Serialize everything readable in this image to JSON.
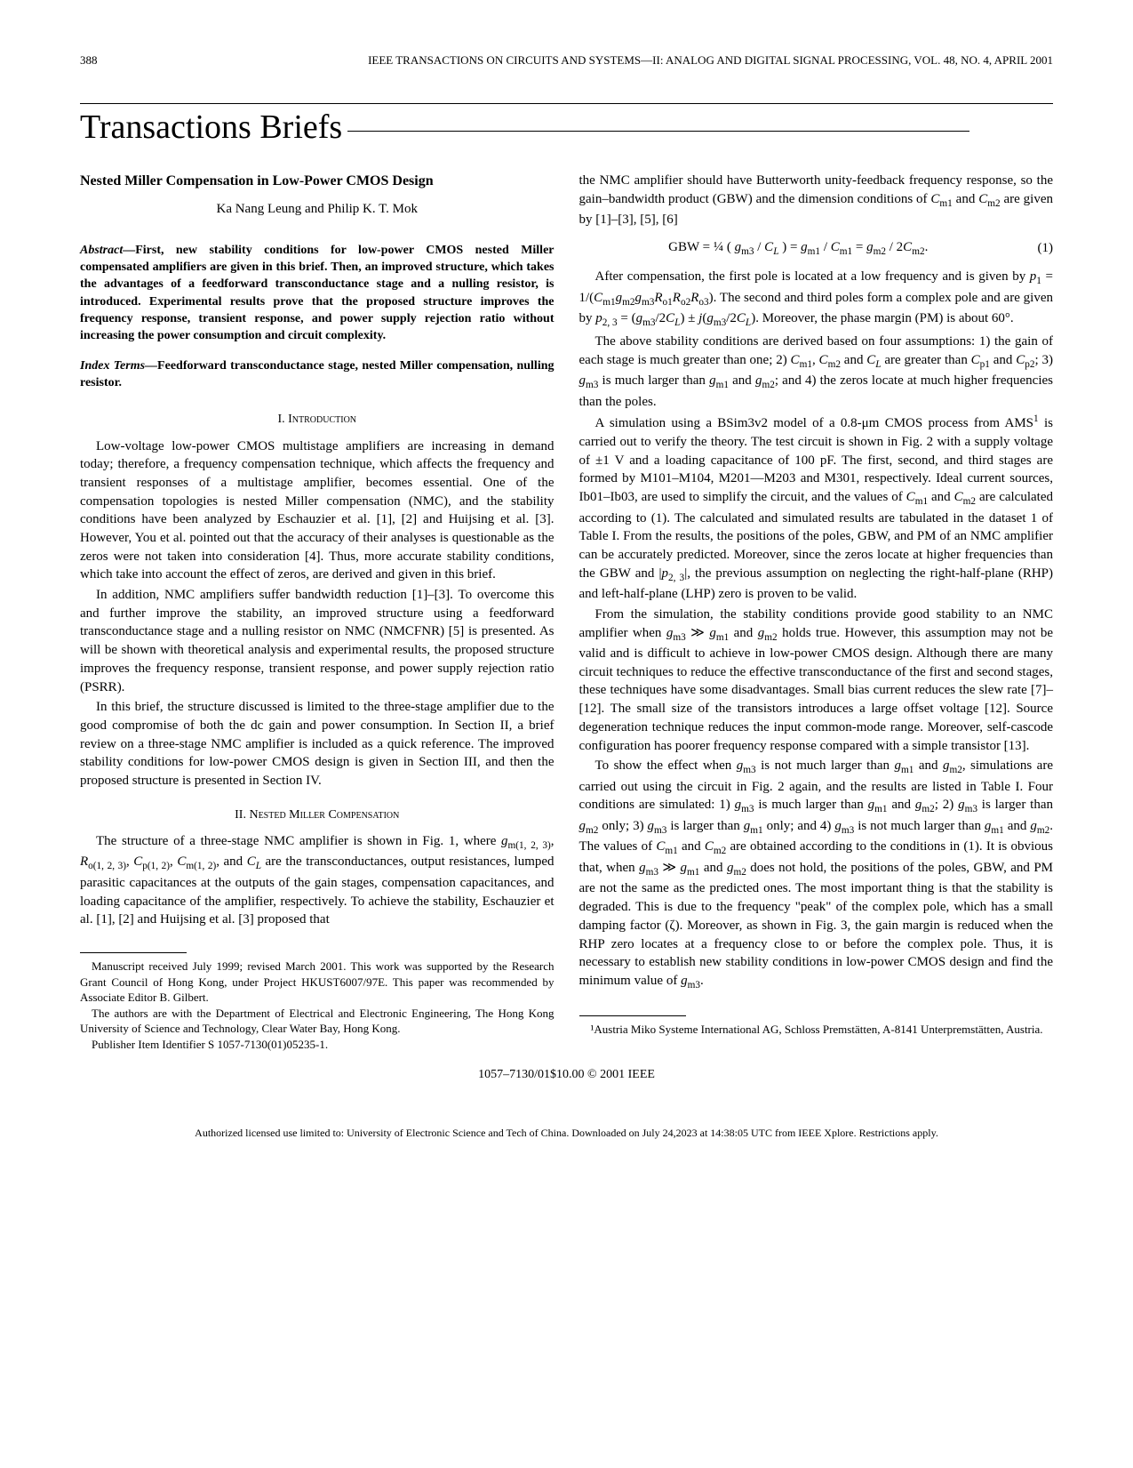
{
  "header": {
    "page_number": "388",
    "running_title": "IEEE TRANSACTIONS ON CIRCUITS AND SYSTEMS—II: ANALOG AND DIGITAL SIGNAL PROCESSING, VOL. 48, NO. 4, APRIL 2001"
  },
  "section_heading": "Transactions Briefs",
  "title": "Nested Miller Compensation in Low-Power CMOS Design",
  "authors": "Ka Nang Leung and Philip K. T. Mok",
  "abstract_lead": "Abstract—",
  "abstract": "First, new stability conditions for low-power CMOS nested Miller compensated amplifiers are given in this brief. Then, an improved structure, which takes the advantages of a feedforward transconductance stage and a nulling resistor, is introduced. Experimental results prove that the proposed structure improves the frequency response, transient response, and power supply rejection ratio without increasing the power consumption and circuit complexity.",
  "index_lead": "Index Terms—",
  "index_terms": "Feedforward transconductance stage, nested Miller compensation, nulling resistor.",
  "sec1_head": "I.  Introduction",
  "sec1_p1": "Low-voltage low-power CMOS multistage amplifiers are increasing in demand today; therefore, a frequency compensation technique, which affects the frequency and transient responses of a multistage amplifier, becomes essential. One of the compensation topologies is nested Miller compensation (NMC), and the stability conditions have been analyzed by Eschauzier et al. [1], [2] and Huijsing et al. [3]. However, You et al. pointed out that the accuracy of their analyses is questionable as the zeros were not taken into consideration [4]. Thus, more accurate stability conditions, which take into account the effect of zeros, are derived and given in this brief.",
  "sec1_p2": "In addition, NMC amplifiers suffer bandwidth reduction [1]–[3]. To overcome this and further improve the stability, an improved structure using a feedforward transconductance stage and a nulling resistor on NMC (NMCFNR) [5] is presented. As will be shown with theoretical analysis and experimental results, the proposed structure improves the frequency response, transient response, and power supply rejection ratio (PSRR).",
  "sec1_p3": "In this brief, the structure discussed is limited to the three-stage amplifier due to the good compromise of both the dc gain and power consumption. In Section II, a brief review on a three-stage NMC amplifier is included as a quick reference. The improved stability conditions for low-power CMOS design is given in Section III, and then the proposed structure is presented in Section IV.",
  "sec2_head": "II.  Nested Miller Compensation",
  "sec2_p1a": "The structure of a three-stage NMC amplifier is shown in Fig. 1, where ",
  "sec2_p1b": " are the transconductances, output resistances, lumped parasitic capacitances at the outputs of the gain stages, compensation capacitances, and loading capacitance of the amplifier, respectively. To achieve the stability, Eschauzier et al. [1], [2] and Huijsing et al. [3] proposed that",
  "col2_p1a": "the NMC amplifier should have Butterworth unity-feedback frequency response, so the gain–bandwidth product (GBW) and the dimension conditions of ",
  "col2_p1b": " are given by [1]–[3], [5], [6]",
  "eq1_num": "(1)",
  "col2_p2a": "After compensation, the first pole is located at a low frequency and is given by ",
  "col2_p2b": ". The second and third poles form a complex pole and are given by ",
  "col2_p2c": ". Moreover, the phase margin (PM) is about 60°.",
  "col2_p3a": "The above stability conditions are derived based on four assumptions: 1) the gain of each stage is much greater than one; 2) ",
  "col2_p3b": " are greater than ",
  "col2_p3c": "; 3) ",
  "col2_p3d": " is much larger than ",
  "col2_p3e": "; and 4) the zeros locate at much higher frequencies than the poles.",
  "col2_p4a": "A simulation using a BSim3v2 model of a 0.8-μm CMOS process from AMS",
  "col2_p4b": " is carried out to verify the theory. The test circuit is shown in Fig. 2 with a supply voltage of ±1 V and a loading capacitance of 100 pF. The first, second, and third stages are formed by M101–M104, M201—M203 and M301, respectively. Ideal current sources, Ib01–Ib03, are used to simplify the circuit, and the values of ",
  "col2_p4c": " are calculated according to (1). The calculated and simulated results are tabulated in the dataset 1 of Table I. From the results, the positions of the poles, GBW, and PM of an NMC amplifier can be accurately predicted. Moreover, since the zeros locate at higher frequencies than the GBW and ",
  "col2_p4d": ", the previous assumption on neglecting the right-half-plane (RHP) and left-half-plane (LHP) zero is proven to be valid.",
  "col2_p5a": "From the simulation, the stability conditions provide good stability to an NMC amplifier when ",
  "col2_p5b": " holds true. However, this assumption may not be valid and is difficult to achieve in low-power CMOS design. Although there are many circuit techniques to reduce the effective transconductance of the first and second stages, these techniques have some disadvantages. Small bias current reduces the slew rate [7]–[12]. The small size of the transistors introduces a large offset voltage [12]. Source degeneration technique reduces the input common-mode range. Moreover, self-cascode configuration has poorer frequency response compared with a simple transistor [13].",
  "col2_p6a": "To show the effect when ",
  "col2_p6b": " is not much larger than ",
  "col2_p6c": ", simulations are carried out using the circuit in Fig. 2 again, and the results are listed in Table I. Four conditions are simulated: 1) ",
  "col2_p6d": " is much larger than ",
  "col2_p6e": "; 2) ",
  "col2_p6f": " is larger than ",
  "col2_p6g": " only; 3) ",
  "col2_p6h": " is larger than ",
  "col2_p6i": " only; and 4) ",
  "col2_p6j": " is not much larger than ",
  "col2_p6k": ". The values of ",
  "col2_p6l": " are obtained according to the conditions in (1). It is obvious that, when ",
  "col2_p6m": " does not hold, the positions of the poles, GBW, and PM are not the same as the predicted ones. The most important thing is that the stability is degraded. This is due to the frequency \"peak\" of the complex pole, which has a small damping factor (ζ). Moreover, as shown in Fig. 3, the gain margin is reduced when the RHP zero locates at a frequency close to or before the complex pole. Thus, it is necessary to establish new stability conditions in low-power CMOS design and find the minimum value of ",
  "col2_p6n": ".",
  "fn_left_1": "Manuscript received July 1999; revised March 2001. This work was supported by the Research Grant Council of Hong Kong, under Project HKUST6007/97E. This paper was recommended by Associate Editor B. Gilbert.",
  "fn_left_2": "The authors are with the Department of Electrical and Electronic Engineering, The Hong Kong University of Science and Technology, Clear Water Bay, Hong Kong.",
  "fn_left_3": "Publisher Item Identifier S 1057-7130(01)05235-1.",
  "fn_right_1": "¹Austria Miko Systeme International AG, Schloss Premstätten, A-8141 Unterpremstätten, Austria.",
  "copyright": "1057–7130/01$10.00 © 2001 IEEE",
  "license": "Authorized licensed use limited to: University of Electronic Science and Tech of China. Downloaded on July 24,2023 at 14:38:05 UTC from IEEE Xplore. Restrictions apply."
}
